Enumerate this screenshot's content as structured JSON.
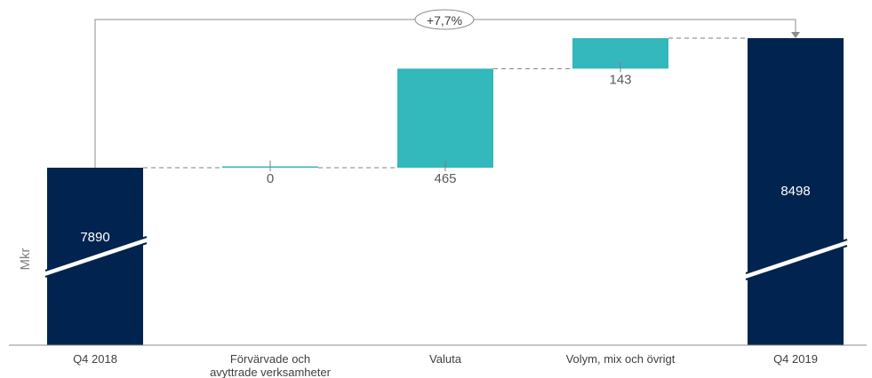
{
  "chart_data": {
    "type": "waterfall",
    "ylabel": "Mkr",
    "total_change_label": "+7,7%",
    "categories": [
      [
        "Q4 2018"
      ],
      [
        "Förvärvade och",
        "avyttrade verksamheter"
      ],
      [
        "Valuta"
      ],
      [
        "Volym, mix och övrigt"
      ],
      [
        "Q4 2019"
      ]
    ],
    "bars": [
      {
        "kind": "total",
        "value": 7890,
        "label": "7890"
      },
      {
        "kind": "delta",
        "value": 0,
        "label": "0"
      },
      {
        "kind": "delta",
        "value": 465,
        "label": "465"
      },
      {
        "kind": "delta",
        "value": 143,
        "label": "143"
      },
      {
        "kind": "total",
        "value": 8498,
        "label": "8498"
      }
    ],
    "axis_break": true,
    "colors": {
      "total": "#00244f",
      "delta": "#33b8bc",
      "axis": "#8c8c8c",
      "connector": "#808080",
      "label_dark": "#595959",
      "label_light": "#ffffff"
    }
  }
}
